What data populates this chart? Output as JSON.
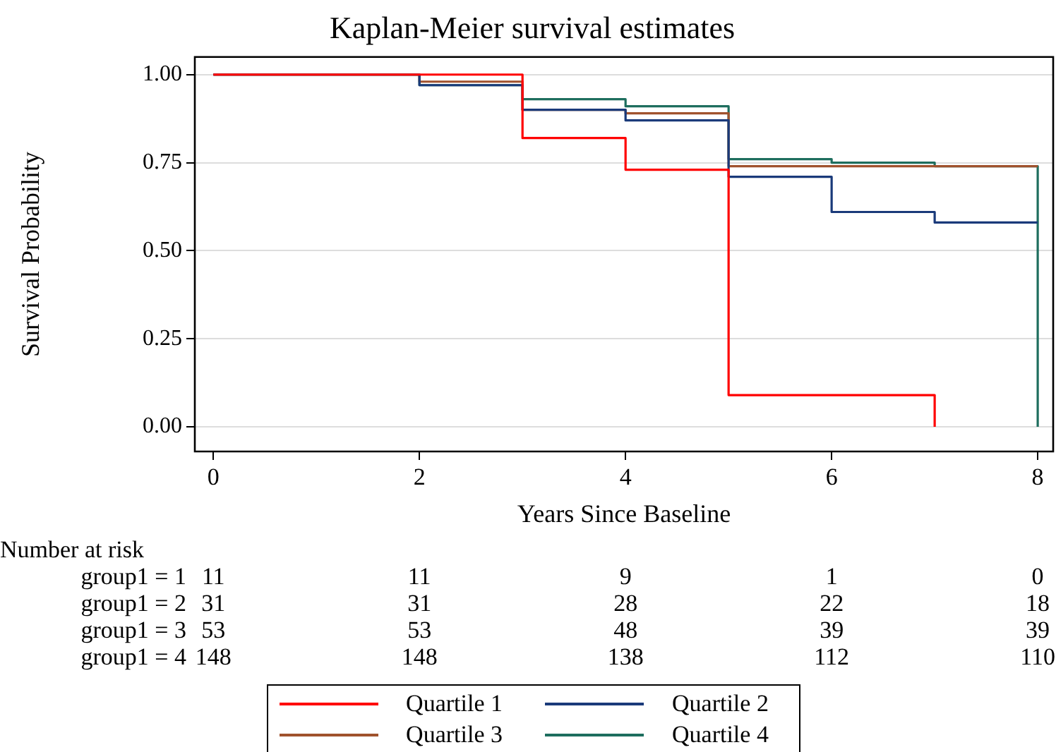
{
  "chart_data": {
    "type": "step",
    "title": "Kaplan-Meier survival estimates",
    "xlabel": "Years Since Baseline",
    "ylabel": "Survival Probability",
    "series": [
      {
        "name": "Quartile 1",
        "color": "#ff0000",
        "x": [
          0,
          3,
          4,
          5,
          7
        ],
        "values": [
          1,
          0.82,
          0.73,
          0.09,
          0
        ]
      },
      {
        "name": "Quartile 2",
        "color": "#1a3a7a",
        "x": [
          0,
          2,
          3,
          4,
          5,
          6,
          7,
          8
        ],
        "values": [
          1,
          0.97,
          0.9,
          0.87,
          0.71,
          0.61,
          0.58,
          0.58
        ]
      },
      {
        "name": "Quartile 3",
        "color": "#a0522d",
        "x": [
          0,
          2,
          3,
          4,
          5,
          8
        ],
        "values": [
          1,
          0.98,
          0.9,
          0.89,
          0.74,
          0.74
        ]
      },
      {
        "name": "Quartile 4",
        "color": "#1e6e5e",
        "x": [
          0,
          2,
          3,
          4,
          5,
          6,
          7,
          8
        ],
        "values": [
          1,
          0.97,
          0.93,
          0.91,
          0.76,
          0.75,
          0.74,
          0
        ]
      }
    ],
    "xlim": [
      -0.18,
      8.15
    ],
    "xticks": [
      0,
      2,
      4,
      6,
      8
    ],
    "ylim": [
      -0.07,
      1.05
    ],
    "yticks": [
      {
        "value": 0,
        "label": "0.00"
      },
      {
        "value": 0.25,
        "label": "0.25"
      },
      {
        "value": 0.5,
        "label": "0.50"
      },
      {
        "value": 0.75,
        "label": "0.75"
      },
      {
        "value": 1,
        "label": "1.00"
      }
    ],
    "grid": "y",
    "legend": "bottom",
    "marker": "none",
    "line_style": "solid",
    "annotations": [
      "Number at risk",
      "group1 = 1",
      "11",
      "11",
      "9",
      "1",
      "0",
      "group1 = 2",
      "31",
      "31",
      "28",
      "22",
      "18",
      "group1 = 3",
      "53",
      "53",
      "48",
      "39",
      "39",
      "group1 = 4",
      "148",
      "148",
      "138",
      "112",
      "110"
    ]
  }
}
